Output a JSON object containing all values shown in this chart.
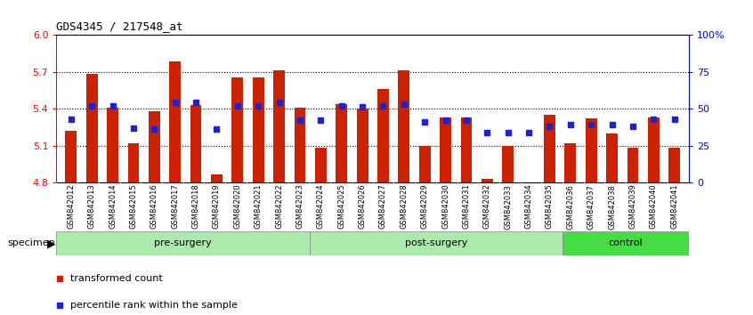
{
  "title": "GDS4345 / 217548_at",
  "samples": [
    "GSM842012",
    "GSM842013",
    "GSM842014",
    "GSM842015",
    "GSM842016",
    "GSM842017",
    "GSM842018",
    "GSM842019",
    "GSM842020",
    "GSM842021",
    "GSM842022",
    "GSM842023",
    "GSM842024",
    "GSM842025",
    "GSM842026",
    "GSM842027",
    "GSM842028",
    "GSM842029",
    "GSM842030",
    "GSM842031",
    "GSM842032",
    "GSM842033",
    "GSM842034",
    "GSM842035",
    "GSM842036",
    "GSM842037",
    "GSM842038",
    "GSM842039",
    "GSM842040",
    "GSM842041"
  ],
  "bar_values": [
    5.22,
    5.68,
    5.41,
    5.12,
    5.38,
    5.78,
    5.43,
    4.87,
    5.65,
    5.65,
    5.71,
    5.41,
    5.08,
    5.44,
    5.4,
    5.56,
    5.71,
    5.1,
    5.33,
    5.33,
    4.83,
    5.1,
    4.8,
    5.35,
    5.12,
    5.32,
    5.2,
    5.08,
    5.33,
    5.08
  ],
  "percentile_values": [
    43,
    52,
    52,
    37,
    36,
    54,
    54,
    36,
    52,
    52,
    54,
    42,
    42,
    52,
    51,
    52,
    53,
    41,
    42,
    42,
    34,
    34,
    34,
    38,
    39,
    39,
    39,
    38,
    43,
    43
  ],
  "group_starts": [
    0,
    12,
    24
  ],
  "group_ends": [
    12,
    24,
    30
  ],
  "group_labels": [
    "pre-surgery",
    "post-surgery",
    "control"
  ],
  "group_colors": [
    "#aaeaaa",
    "#aaeaaa",
    "#44dd44"
  ],
  "ymin": 4.8,
  "ymax": 6.0,
  "yticks_left": [
    4.8,
    5.1,
    5.4,
    5.7,
    6.0
  ],
  "yticks_right": [
    0,
    25,
    50,
    75,
    100
  ],
  "ytick_labels_right": [
    "0",
    "25",
    "50",
    "75",
    "100%"
  ],
  "hlines": [
    5.1,
    5.4,
    5.7
  ],
  "bar_color": "#cc2200",
  "dot_color": "#2222cc",
  "bar_baseline": 4.8,
  "legend_items": [
    {
      "color": "#cc2200",
      "label": "transformed count"
    },
    {
      "color": "#2222cc",
      "label": "percentile rank within the sample"
    }
  ]
}
